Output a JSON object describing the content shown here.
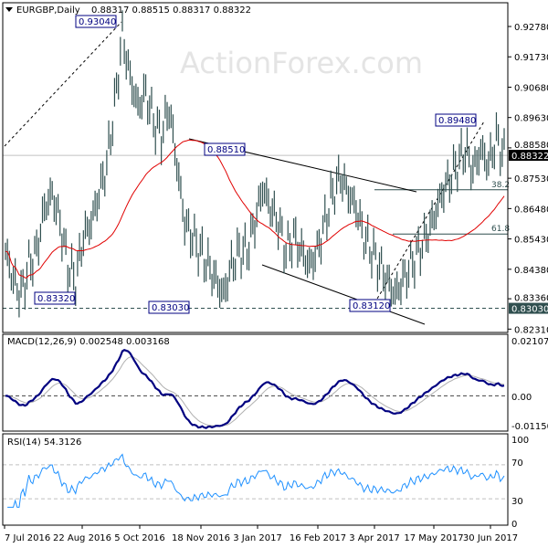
{
  "header": {
    "symbol": "EURGBP,Daily",
    "ohlc": "0.88317 0.88515 0.88317 0.88322"
  },
  "watermark": "ActionForex.com",
  "chart_data": {
    "type": "bar",
    "title": "EURGBP,Daily",
    "ylim": [
      0.8231,
      0.932
    ],
    "yticks": [
      "0.92780",
      "0.91730",
      "0.90680",
      "0.89630",
      "0.88580",
      "0.87530",
      "0.86480",
      "0.85430",
      "0.84380",
      "0.83360",
      "0.82310"
    ],
    "ytick_values": [
      0.9278,
      0.9173,
      0.9068,
      0.8963,
      0.8858,
      0.8753,
      0.8648,
      0.8543,
      0.8438,
      0.8336,
      0.8231
    ],
    "current_price": "0.88322",
    "current_price_value": 0.88322,
    "support_label": "0.83030",
    "support_value": 0.8303,
    "xticks": [
      "7 Jul 2016",
      "22 Aug 2016",
      "5 Oct 2016",
      "18 Nov 2016",
      "3 Jan 2017",
      "16 Feb 2017",
      "3 Apr 2017",
      "17 May 2017",
      "30 Jun 2017"
    ],
    "weekly_closes": [
      0.85,
      0.84,
      0.835,
      0.845,
      0.85,
      0.865,
      0.87,
      0.86,
      0.845,
      0.84,
      0.855,
      0.86,
      0.87,
      0.88,
      0.9,
      0.925,
      0.91,
      0.9,
      0.905,
      0.895,
      0.89,
      0.9,
      0.88,
      0.86,
      0.855,
      0.85,
      0.845,
      0.84,
      0.835,
      0.845,
      0.85,
      0.85,
      0.86,
      0.872,
      0.865,
      0.86,
      0.85,
      0.855,
      0.85,
      0.845,
      0.85,
      0.86,
      0.87,
      0.876,
      0.87,
      0.865,
      0.855,
      0.85,
      0.845,
      0.84,
      0.835,
      0.84,
      0.845,
      0.85,
      0.855,
      0.862,
      0.87,
      0.875,
      0.88,
      0.885,
      0.878,
      0.885,
      0.88,
      0.889,
      0.883
    ],
    "moving_average_color": "#e00000",
    "annotations": [
      {
        "label": "0.93040",
        "value": 0.9304
      },
      {
        "label": "0.83320",
        "value": 0.8332
      },
      {
        "label": "0.88510",
        "value": 0.8851
      },
      {
        "label": "0.83030",
        "value": 0.8303
      },
      {
        "label": "0.83120",
        "value": 0.8312
      },
      {
        "label": "0.89480",
        "value": 0.8948
      }
    ],
    "fib": [
      {
        "label": "38.2",
        "value": 0.8713
      },
      {
        "label": "61.8",
        "value": 0.856
      }
    ],
    "macd": {
      "label": "MACD(12,26,9) 0.002548 0.003168",
      "ylim": [
        -0.011507,
        0.021074
      ],
      "yticks": [
        "0.021074",
        "0.00",
        "-0.011507"
      ],
      "main_color": "#000080",
      "signal_color": "#b0b0b0"
    },
    "rsi": {
      "label": "RSI(14) 54.3126",
      "yticks": [
        "100",
        "70",
        "30",
        "0"
      ],
      "color": "#1e90ff"
    }
  }
}
